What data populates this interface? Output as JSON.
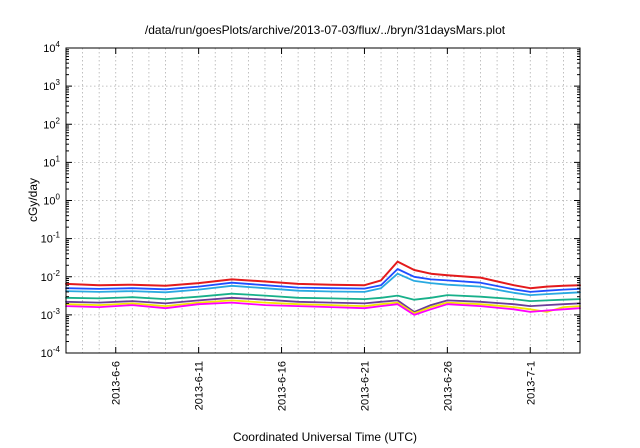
{
  "chart_data": {
    "type": "line",
    "title": "/data/run/goesPlots/archive/2013-07-03/flux/../bryn/31daysMars.plot",
    "xlabel": "Coordinated Universal Time (UTC)",
    "ylabel": "cGy/day",
    "yscale": "log",
    "ylim": [
      0.0001,
      10000
    ],
    "xlim": [
      "2013-06-03",
      "2013-07-04"
    ],
    "grid": true,
    "y_ticks": [
      {
        "value": 0.0001,
        "base": "10",
        "exp": "-4"
      },
      {
        "value": 0.001,
        "base": "10",
        "exp": "-3"
      },
      {
        "value": 0.01,
        "base": "10",
        "exp": "-2"
      },
      {
        "value": 0.1,
        "base": "10",
        "exp": "-1"
      },
      {
        "value": 1,
        "base": "10",
        "exp": "0"
      },
      {
        "value": 10,
        "base": "10",
        "exp": "1"
      },
      {
        "value": 100,
        "base": "10",
        "exp": "2"
      },
      {
        "value": 1000,
        "base": "10",
        "exp": "3"
      },
      {
        "value": 10000,
        "base": "10",
        "exp": "4"
      }
    ],
    "x_ticks": [
      {
        "date": "2013-06-06",
        "label": "2013-6-6"
      },
      {
        "date": "2013-06-11",
        "label": "2013-6-11"
      },
      {
        "date": "2013-06-16",
        "label": "2013-6-16"
      },
      {
        "date": "2013-06-21",
        "label": "2013-6-21"
      },
      {
        "date": "2013-06-26",
        "label": "2013-6-26"
      },
      {
        "date": "2013-07-01",
        "label": "2013-7-1"
      }
    ],
    "x": [
      "2013-06-03",
      "2013-06-05",
      "2013-06-07",
      "2013-06-09",
      "2013-06-11",
      "2013-06-13",
      "2013-06-15",
      "2013-06-17",
      "2013-06-19",
      "2013-06-21",
      "2013-06-22",
      "2013-06-23",
      "2013-06-24",
      "2013-06-25",
      "2013-06-26",
      "2013-06-28",
      "2013-06-30",
      "2013-07-01",
      "2013-07-02",
      "2013-07-03",
      "2013-07-04"
    ],
    "series": [
      {
        "color": "#e31a1c",
        "values": [
          0.0065,
          0.006,
          0.0062,
          0.0058,
          0.0068,
          0.0085,
          0.0075,
          0.0065,
          0.0062,
          0.006,
          0.008,
          0.025,
          0.015,
          0.012,
          0.011,
          0.0095,
          0.006,
          0.005,
          0.0055,
          0.0058,
          0.006
        ]
      },
      {
        "color": "#1f4fff",
        "values": [
          0.005,
          0.0048,
          0.005,
          0.0047,
          0.0055,
          0.007,
          0.006,
          0.0052,
          0.005,
          0.0049,
          0.006,
          0.016,
          0.01,
          0.0085,
          0.008,
          0.007,
          0.0047,
          0.004,
          0.0043,
          0.0046,
          0.0048
        ]
      },
      {
        "color": "#29a9e0",
        "values": [
          0.0042,
          0.004,
          0.0042,
          0.0039,
          0.0046,
          0.0058,
          0.005,
          0.0043,
          0.0041,
          0.004,
          0.005,
          0.012,
          0.0078,
          0.0068,
          0.0062,
          0.0055,
          0.0038,
          0.0033,
          0.0035,
          0.0037,
          0.0039
        ]
      },
      {
        "color": "#18b08a",
        "values": [
          0.0028,
          0.0027,
          0.0029,
          0.0026,
          0.003,
          0.0036,
          0.0032,
          0.0028,
          0.0027,
          0.0026,
          0.0028,
          0.0032,
          0.0025,
          0.0028,
          0.0033,
          0.003,
          0.0026,
          0.0023,
          0.0024,
          0.0025,
          0.0026
        ]
      },
      {
        "color": "#6a3d9a",
        "values": [
          0.0022,
          0.0021,
          0.0023,
          0.002,
          0.0024,
          0.0028,
          0.0025,
          0.0022,
          0.0021,
          0.002,
          0.0022,
          0.0024,
          0.0012,
          0.0018,
          0.0024,
          0.0022,
          0.0019,
          0.0017,
          0.0018,
          0.0019,
          0.002
        ]
      },
      {
        "color": "#f2e600",
        "values": [
          0.0019,
          0.0018,
          0.002,
          0.0017,
          0.0021,
          0.0024,
          0.0021,
          0.0019,
          0.0018,
          0.0017,
          0.0019,
          0.0021,
          0.0011,
          0.0016,
          0.0021,
          0.0019,
          0.0016,
          0.0014,
          0.0012,
          0.0016,
          0.0017
        ]
      },
      {
        "color": "#ff00ff",
        "values": [
          0.0017,
          0.0016,
          0.0018,
          0.0015,
          0.0019,
          0.0021,
          0.0018,
          0.0017,
          0.0016,
          0.0015,
          0.0017,
          0.0019,
          0.001,
          0.0014,
          0.0019,
          0.0017,
          0.0014,
          0.0012,
          0.0013,
          0.0014,
          0.0015
        ]
      }
    ]
  }
}
